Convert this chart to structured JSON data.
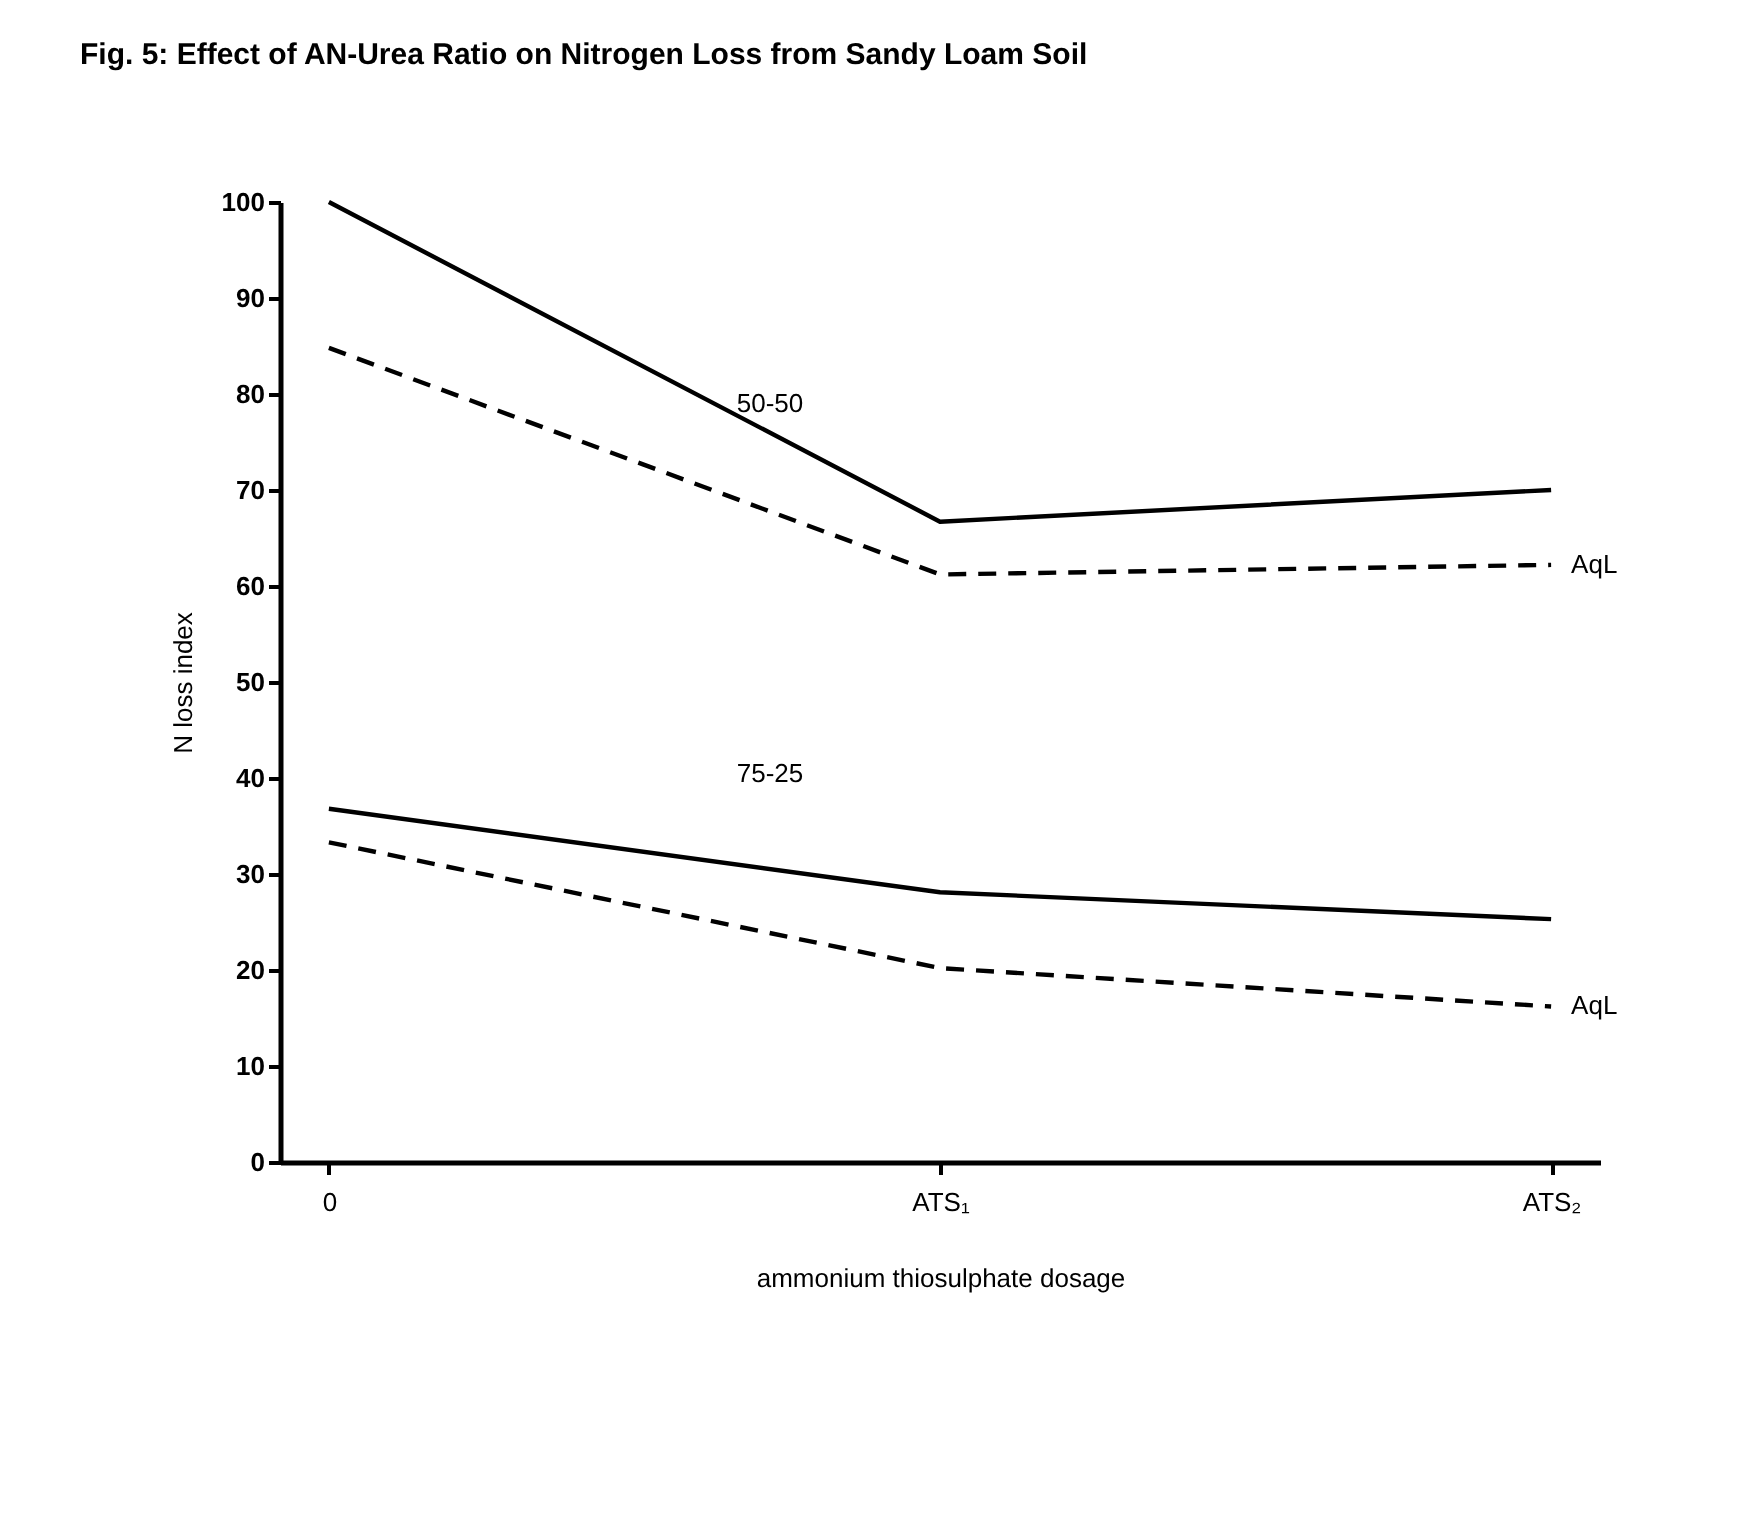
{
  "chart_data": {
    "type": "line",
    "title": "Fig. 5: Effect of AN-Urea Ratio on Nitrogen Loss from Sandy Loam Soil",
    "xlabel": "ammonium thiosulphate dosage",
    "ylabel": "N loss index",
    "categories": [
      "0",
      "ATS₁",
      "ATS₂"
    ],
    "series": [
      {
        "name": "50-50",
        "color": "#000000",
        "line_style": "solid",
        "values": [
          100,
          66.7,
          70
        ]
      },
      {
        "name": "AqL",
        "color": "#000000",
        "line_style": "dashed",
        "values": [
          84.8,
          61.2,
          62.2
        ]
      },
      {
        "name": "75-25",
        "color": "#000000",
        "line_style": "solid",
        "values": [
          36.8,
          28.1,
          25.3
        ]
      },
      {
        "name": "AqL",
        "color": "#000000",
        "line_style": "dashed",
        "values": [
          33.3,
          20.2,
          16.2
        ]
      }
    ],
    "ylim": [
      0,
      100
    ],
    "yticks": [
      0,
      10,
      20,
      30,
      40,
      50,
      60,
      70,
      80,
      90,
      100
    ]
  }
}
